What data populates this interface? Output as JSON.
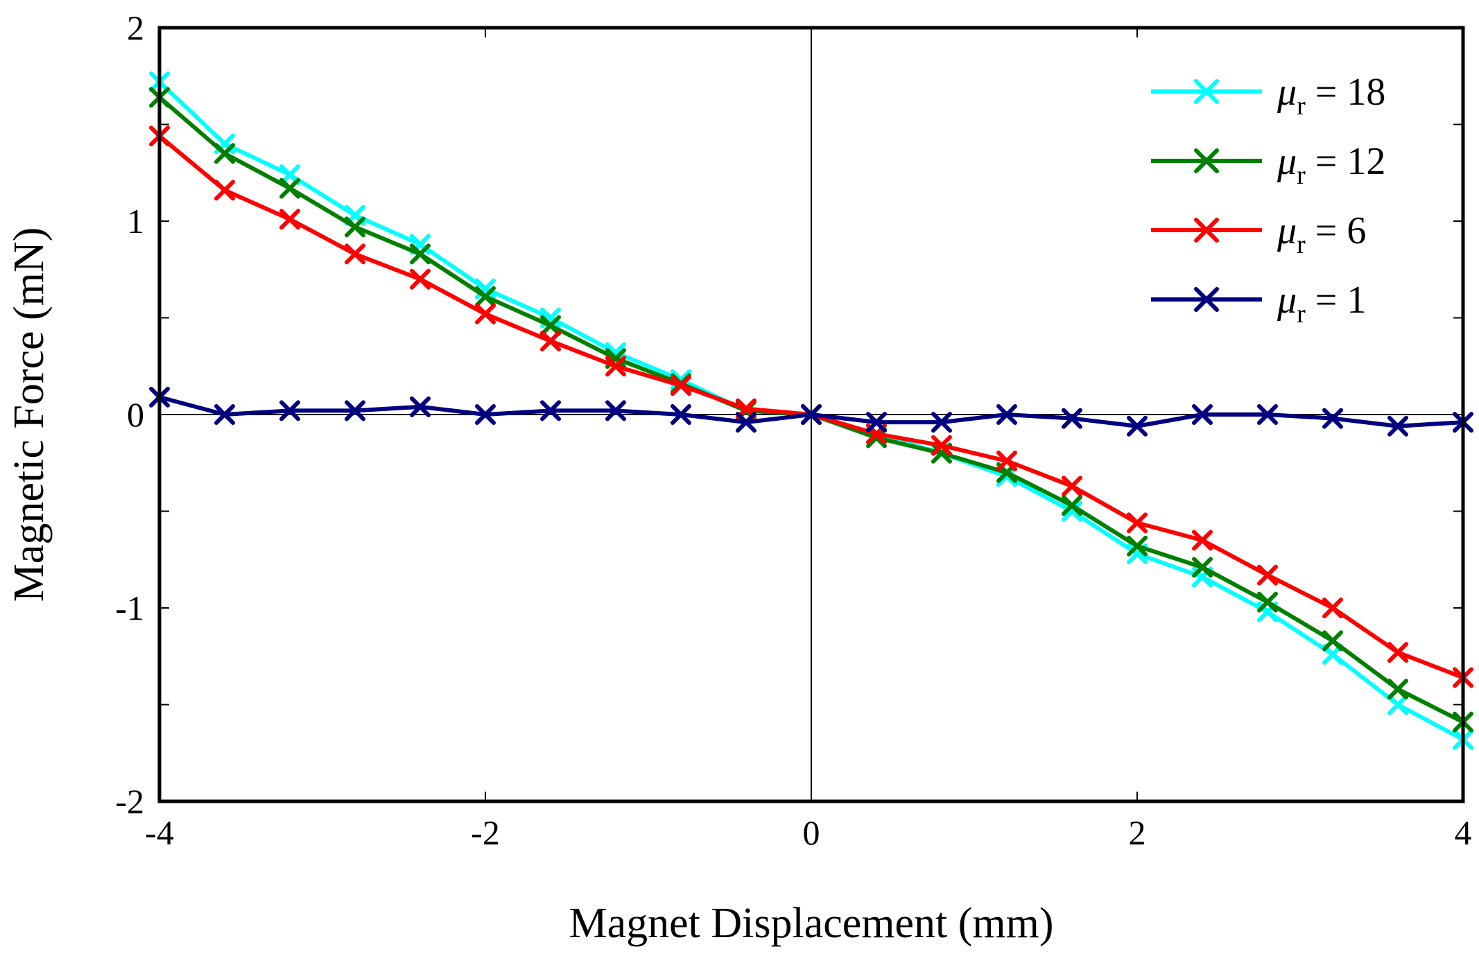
{
  "chart_data": {
    "type": "line",
    "xlabel": "Magnet Displacement (mm)",
    "ylabel": "Magnetic Force (mN)",
    "xlim": [
      -4,
      4
    ],
    "ylim": [
      -2,
      2
    ],
    "xticks": [
      -4,
      -2,
      0,
      2,
      4
    ],
    "xtick_labels": [
      "-4",
      "-2",
      "0",
      "2",
      "4"
    ],
    "yticks": [
      -2,
      -1.5,
      -1,
      -0.5,
      0,
      0.5,
      1,
      1.5,
      2
    ],
    "ytick_labels": [
      "-2",
      "",
      "-1",
      "",
      "0",
      "",
      "1",
      "",
      "2"
    ],
    "grid": false,
    "zero_lines": true,
    "legend_position": "top-right",
    "x": [
      -4,
      -3.6,
      -3.2,
      -2.8,
      -2.4,
      -2.0,
      -1.6,
      -1.2,
      -0.8,
      -0.4,
      0,
      0.4,
      0.8,
      1.2,
      1.6,
      2.0,
      2.4,
      2.8,
      3.2,
      3.6,
      4.0
    ],
    "series": [
      {
        "name": "μr = 18",
        "label_symbol": "μ",
        "label_sub": "r",
        "label_value": " = 18",
        "color": "#00ffff",
        "marker": "x",
        "values": [
          1.72,
          1.4,
          1.24,
          1.03,
          0.88,
          0.65,
          0.5,
          0.32,
          0.18,
          0.02,
          0,
          -0.1,
          -0.2,
          -0.32,
          -0.5,
          -0.72,
          -0.84,
          -1.02,
          -1.24,
          -1.5,
          -1.68
        ]
      },
      {
        "name": "μr = 12",
        "label_symbol": "μ",
        "label_sub": "r",
        "label_value": " = 12",
        "color": "#008000",
        "marker": "x",
        "values": [
          1.64,
          1.35,
          1.17,
          0.97,
          0.83,
          0.61,
          0.46,
          0.29,
          0.16,
          0.02,
          0,
          -0.12,
          -0.2,
          -0.3,
          -0.47,
          -0.68,
          -0.79,
          -0.97,
          -1.17,
          -1.42,
          -1.59
        ]
      },
      {
        "name": "μr = 6",
        "label_symbol": "μ",
        "label_sub": "r",
        "label_value": " = 6",
        "color": "#ff0000",
        "marker": "x",
        "values": [
          1.44,
          1.16,
          1.01,
          0.83,
          0.7,
          0.52,
          0.38,
          0.25,
          0.15,
          0.03,
          0,
          -0.1,
          -0.16,
          -0.24,
          -0.37,
          -0.56,
          -0.65,
          -0.83,
          -1.0,
          -1.23,
          -1.36
        ]
      },
      {
        "name": "μr = 1",
        "label_symbol": "μ",
        "label_sub": "r",
        "label_value": " = 1",
        "color": "#000080",
        "marker": "x",
        "values": [
          0.09,
          0.0,
          0.02,
          0.02,
          0.04,
          0.0,
          0.02,
          0.02,
          0.0,
          -0.04,
          0,
          -0.04,
          -0.04,
          0.0,
          -0.02,
          -0.06,
          0.0,
          0.0,
          -0.02,
          -0.06,
          -0.04
        ]
      }
    ]
  }
}
